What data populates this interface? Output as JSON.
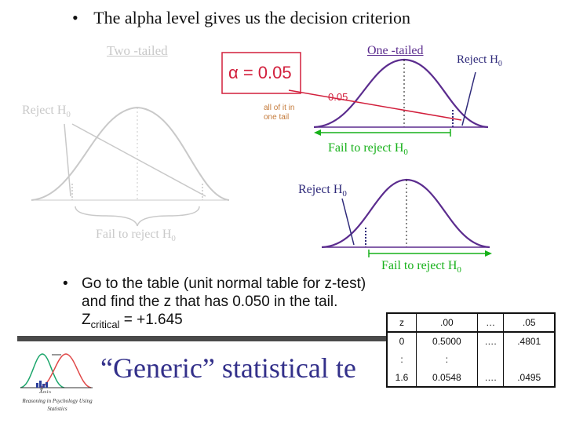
{
  "bullets": {
    "b1": "The alpha level gives us the decision criterion",
    "b2_line1": "Go to the table (unit normal table for z-test)",
    "b2_line2": "and find the z that has 0.050 in the tail.",
    "z_main": "Z",
    "z_sub": "critical",
    "z_value": " = +1.645"
  },
  "two_tailed": {
    "title": "Two -tailed",
    "reject": "Reject H",
    "reject_sub": "0",
    "fail": "Fail to reject H",
    "fail_sub": "0"
  },
  "alpha_box": {
    "label": "α = 0.05"
  },
  "annot": {
    "value": "0.05",
    "note_line1": "all of it in",
    "note_line2": "one tail"
  },
  "one_tailed": {
    "title": "One -tailed",
    "reject": "Reject H",
    "reject_sub": "0",
    "fail": "Fail to reject H",
    "fail_sub": "0"
  },
  "lower": {
    "reject": "Reject H",
    "reject_sub": "0",
    "fail": "Fail to reject H",
    "fail_sub": "0"
  },
  "logo": {
    "caption_line1": "Reasoning in Psychology Using",
    "caption_line2": "Statistics",
    "xbar": "X̄ₘₗₙ"
  },
  "footer": {
    "title": "“Generic” statistical te"
  },
  "ztable": {
    "headers": [
      "z",
      ".00",
      "…",
      ".05"
    ],
    "rows": [
      [
        "0",
        "0.5000",
        "….",
        ".4801"
      ],
      [
        ":",
        ":",
        "",
        ""
      ],
      [
        "1.6",
        "0.0548",
        "….",
        ".0495"
      ]
    ]
  },
  "colors": {
    "purple": "#5b2c8e",
    "green": "#17b11a",
    "red": "#d21f3c",
    "navy": "#2f2a7a",
    "muted": "#c9c9c9"
  }
}
